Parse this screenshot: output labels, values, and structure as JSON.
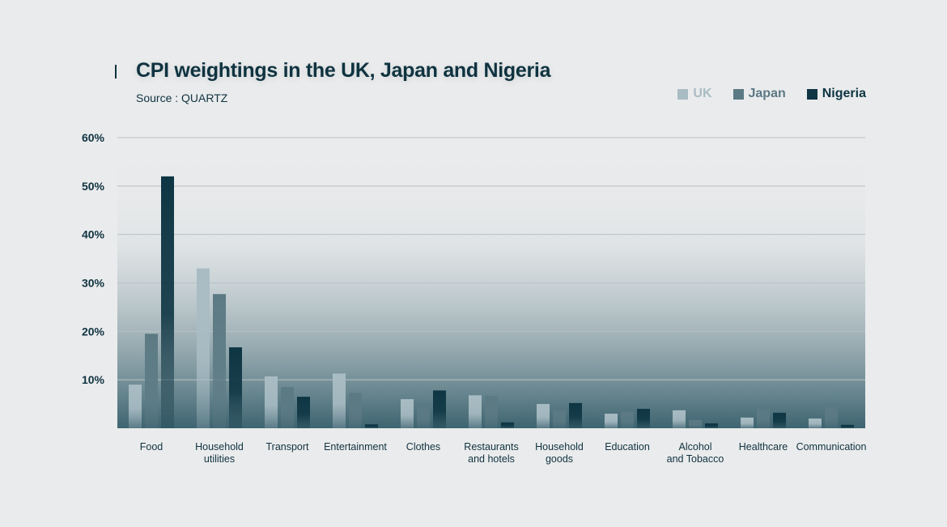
{
  "header": {
    "title": "CPI weightings in the UK, Japan and Nigeria",
    "source": "Source : QUARTZ"
  },
  "colors": {
    "uk": "#a9bcc4",
    "japan": "#5c7a84",
    "nigeria": "#0e3543",
    "text": "#0f3340",
    "grid": "#b9c1c5",
    "background": "#eaebec"
  },
  "chart_data": {
    "type": "bar",
    "title": "CPI weightings in the UK, Japan and Nigeria",
    "subtitle": "Source : QUARTZ",
    "xlabel": "",
    "ylabel": "",
    "ylim": [
      0,
      60
    ],
    "yticks": [
      10,
      20,
      30,
      40,
      50,
      60
    ],
    "ytick_labels": [
      "10%",
      "20%",
      "30%",
      "40%",
      "50%",
      "60%"
    ],
    "grid": true,
    "legend_position": "top-right",
    "categories": [
      [
        "Food"
      ],
      [
        "Household",
        "utilities"
      ],
      [
        "Transport"
      ],
      [
        "Entertainment"
      ],
      [
        "Clothes"
      ],
      [
        "Restaurants",
        "and hotels"
      ],
      [
        "Household",
        "goods"
      ],
      [
        "Education"
      ],
      [
        "Alcohol",
        "and Tobacco"
      ],
      [
        "Healthcare"
      ],
      [
        "Communication"
      ]
    ],
    "series": [
      {
        "name": "UK",
        "color": "#a9bcc4",
        "values": [
          9,
          33,
          10.7,
          11.3,
          6,
          6.8,
          5,
          3,
          3.7,
          2.2,
          2
        ]
      },
      {
        "name": "Japan",
        "color": "#5c7a84",
        "values": [
          19.5,
          27.7,
          8.5,
          7.3,
          4.5,
          6.7,
          3.7,
          3.4,
          1.7,
          4,
          5
        ]
      },
      {
        "name": "Nigeria",
        "color": "#0e3543",
        "values": [
          52,
          16.7,
          6.5,
          0.8,
          7.8,
          1.2,
          5.2,
          4,
          1,
          3.2,
          0.7
        ]
      }
    ]
  }
}
